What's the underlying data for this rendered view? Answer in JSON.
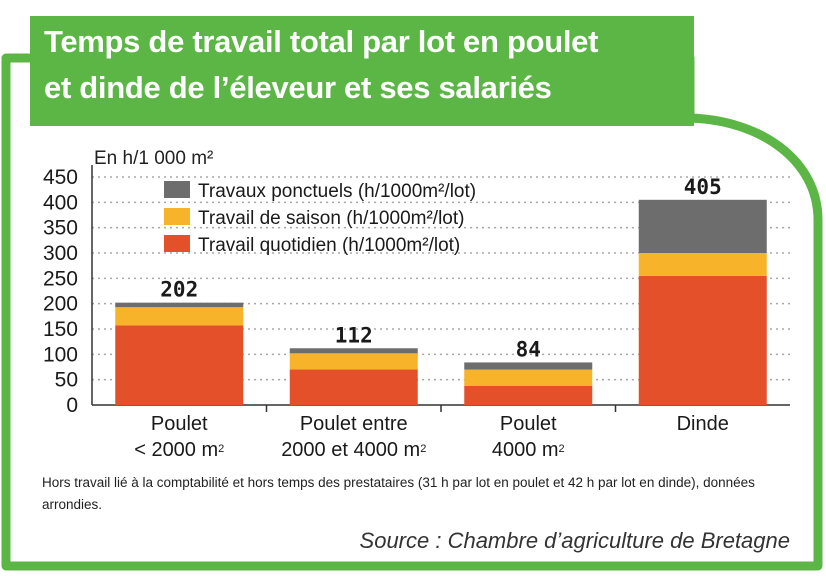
{
  "title": {
    "line1": "Temps de travail total par lot en poulet",
    "line2": "et dinde de l’éleveur et ses salariés"
  },
  "colors": {
    "frame": "#5cb646",
    "travaux_ponctuels": "#6d6d6d",
    "travail_saison": "#f7b329",
    "travail_quotidien": "#e4502a",
    "grid": "#a8a8a8"
  },
  "chart_data": {
    "type": "bar",
    "stacked": true,
    "unit_label": "En h/1 000 m²",
    "categories": [
      {
        "line1": "Poulet",
        "line2": "< 2000 m",
        "sup": "2"
      },
      {
        "line1": "Poulet entre",
        "line2": "2000 et 4000 m",
        "sup": "2"
      },
      {
        "line1": "Poulet",
        "line2": "4000 m",
        "sup": "2"
      },
      {
        "line1": "Dinde",
        "line2": "",
        "sup": ""
      }
    ],
    "series": [
      {
        "name": "Travail quotidien (h/1000m²/lot)",
        "color": "#e4502a",
        "values": [
          157,
          70,
          38,
          255
        ]
      },
      {
        "name": "Travail de saison (h/1000m²/lot)",
        "color": "#f7b329",
        "values": [
          36,
          32,
          32,
          45
        ]
      },
      {
        "name": "Travaux ponctuels (h/1000m²/lot)",
        "color": "#6d6d6d",
        "values": [
          9,
          10,
          14,
          105
        ]
      }
    ],
    "totals": [
      202,
      112,
      84,
      405
    ],
    "total_labels": [
      "202",
      "112",
      "84",
      "405"
    ],
    "ylim": [
      0,
      450
    ],
    "yticks": [
      0,
      50,
      100,
      150,
      200,
      250,
      300,
      350,
      400,
      450
    ],
    "ytick_labels": [
      "0",
      "50",
      "100",
      "150",
      "200",
      "250",
      "300",
      "350",
      "400",
      "450"
    ],
    "grid": true,
    "legend_position": "top-left"
  },
  "note": "Hors travail lié à la comptabilité et hors temps des prestataires (31 h par lot en poulet et 42 h par lot en dinde), données arrondies.",
  "source": "Source : Chambre d’agriculture de Bretagne"
}
